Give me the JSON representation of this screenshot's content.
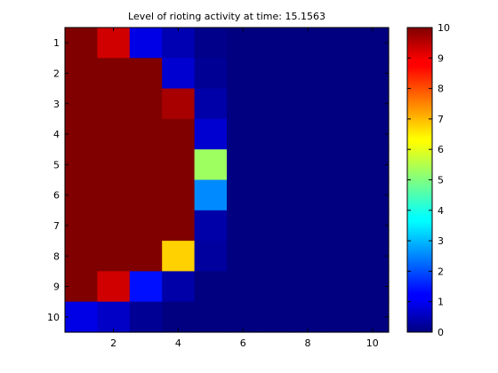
{
  "chart_data": {
    "type": "heatmap",
    "title": "Level of rioting activity at time: 15.1563",
    "xlabel": "",
    "ylabel": "",
    "x_ticks": [
      "2",
      "4",
      "6",
      "8",
      "10"
    ],
    "x_tick_values": [
      2,
      4,
      6,
      8,
      10
    ],
    "y_ticks": [
      "1",
      "2",
      "3",
      "4",
      "5",
      "6",
      "7",
      "8",
      "9",
      "10"
    ],
    "y_tick_values": [
      1,
      2,
      3,
      4,
      5,
      6,
      7,
      8,
      9,
      10
    ],
    "rows": 10,
    "cols": 10,
    "values": [
      [
        10,
        9.2,
        1.0,
        0.5,
        0.1,
        0,
        0,
        0,
        0,
        0
      ],
      [
        10,
        10,
        10,
        0.8,
        0.2,
        0,
        0,
        0,
        0,
        0
      ],
      [
        10,
        10,
        10,
        9.6,
        0.4,
        0,
        0,
        0,
        0,
        0
      ],
      [
        10,
        10,
        10,
        10,
        0.8,
        0,
        0,
        0,
        0,
        0
      ],
      [
        10,
        10,
        10,
        10,
        5.3,
        0,
        0,
        0,
        0,
        0
      ],
      [
        10,
        10,
        10,
        10,
        2.6,
        0,
        0,
        0,
        0,
        0
      ],
      [
        10,
        10,
        10,
        10,
        0.4,
        0,
        0,
        0,
        0,
        0
      ],
      [
        10,
        10,
        10,
        6.7,
        0.3,
        0,
        0,
        0,
        0,
        0
      ],
      [
        10,
        9.2,
        1.4,
        0.4,
        0,
        0,
        0,
        0,
        0,
        0
      ],
      [
        1.0,
        0.7,
        0.2,
        0,
        0,
        0,
        0,
        0,
        0,
        0
      ]
    ],
    "clim": [
      0,
      10
    ],
    "colormap": "jet",
    "colorbar": {
      "ticks": [
        "0",
        "1",
        "2",
        "3",
        "4",
        "5",
        "6",
        "7",
        "8",
        "9",
        "10"
      ],
      "tick_values": [
        0,
        1,
        2,
        3,
        4,
        5,
        6,
        7,
        8,
        9,
        10
      ],
      "position": "right"
    },
    "grid": false
  }
}
